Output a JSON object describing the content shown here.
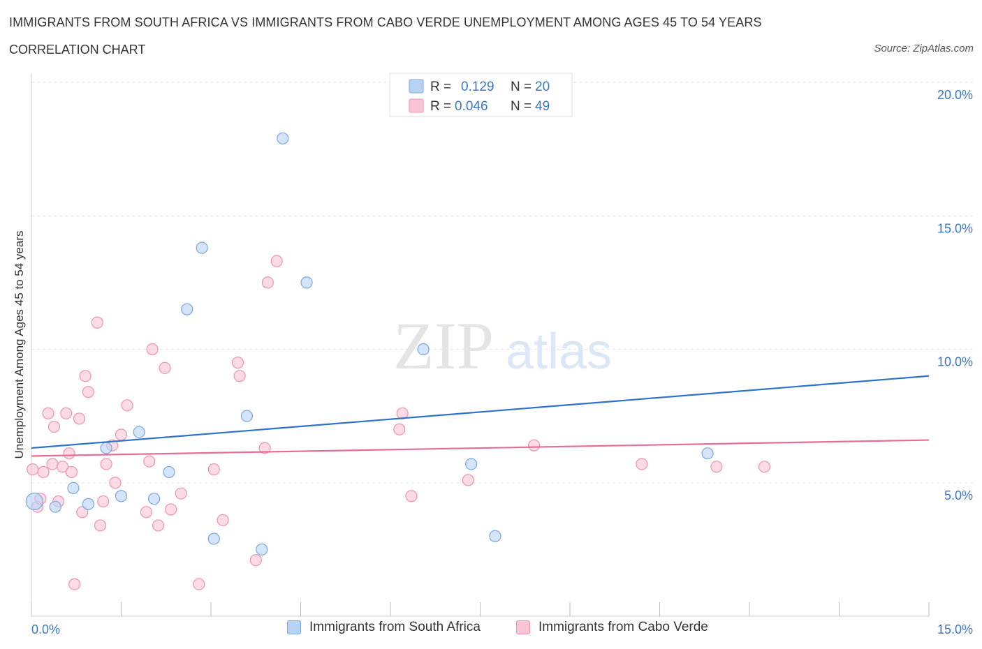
{
  "header": {
    "title": "IMMIGRANTS FROM SOUTH AFRICA VS IMMIGRANTS FROM CABO VERDE UNEMPLOYMENT AMONG AGES 45 TO 54 YEARS",
    "subtitle": "CORRELATION CHART",
    "source": "Source: ZipAtlas.com"
  },
  "watermark": {
    "zip": "ZIP",
    "atlas": "atlas"
  },
  "legend": {
    "r_label": "R =",
    "n_label": "N =",
    "rows": [
      {
        "r": "0.129",
        "n": "20"
      },
      {
        "r": "0.046",
        "n": "49"
      }
    ]
  },
  "colors": {
    "south_africa_fill": "#b9d3f5",
    "south_africa_stroke": "#7aa6e0",
    "south_africa_line": "#2f72c9",
    "cabo_verde_fill": "#f9c5d4",
    "cabo_verde_stroke": "#ee93ae",
    "cabo_verde_line": "#e56e95",
    "axis_label": "#3a78c4"
  },
  "chart_data": {
    "type": "scatter",
    "title": "IMMIGRANTS FROM SOUTH AFRICA VS IMMIGRANTS FROM CABO VERDE UNEMPLOYMENT AMONG AGES 45 TO 54 YEARS",
    "ylabel": "Unemployment Among Ages 45 to 54 years",
    "xlabel": "",
    "xlim": [
      0,
      15
    ],
    "ylim": [
      0,
      20
    ],
    "x_tick_labels": [
      "0.0%",
      "15.0%"
    ],
    "y_ticks": [
      5,
      10,
      15,
      20
    ],
    "y_tick_labels": [
      "5.0%",
      "10.0%",
      "15.0%",
      "20.0%"
    ],
    "grid": true,
    "legend_position": "top-center",
    "series": [
      {
        "name": "Immigrants from South Africa",
        "points": [
          {
            "x": 0.05,
            "y": 4.3,
            "big": true
          },
          {
            "x": 0.4,
            "y": 4.1
          },
          {
            "x": 0.7,
            "y": 4.8
          },
          {
            "x": 0.95,
            "y": 4.2
          },
          {
            "x": 1.25,
            "y": 6.3
          },
          {
            "x": 1.5,
            "y": 4.5
          },
          {
            "x": 1.8,
            "y": 6.9
          },
          {
            "x": 2.05,
            "y": 4.4
          },
          {
            "x": 2.3,
            "y": 5.4
          },
          {
            "x": 2.6,
            "y": 11.5
          },
          {
            "x": 2.85,
            "y": 13.8
          },
          {
            "x": 3.05,
            "y": 2.9
          },
          {
            "x": 3.6,
            "y": 7.5
          },
          {
            "x": 3.85,
            "y": 2.5
          },
          {
            "x": 4.2,
            "y": 17.9
          },
          {
            "x": 4.6,
            "y": 12.5
          },
          {
            "x": 6.55,
            "y": 10.0
          },
          {
            "x": 7.35,
            "y": 5.7
          },
          {
            "x": 7.75,
            "y": 3.0
          },
          {
            "x": 11.3,
            "y": 6.1
          }
        ],
        "trend": {
          "x": [
            0,
            15
          ],
          "y": [
            6.3,
            9.0
          ]
        }
      },
      {
        "name": "Immigrants from Cabo Verde",
        "points": [
          {
            "x": 0.02,
            "y": 5.5
          },
          {
            "x": 0.1,
            "y": 4.1
          },
          {
            "x": 0.15,
            "y": 4.4
          },
          {
            "x": 0.2,
            "y": 5.4
          },
          {
            "x": 0.28,
            "y": 7.6
          },
          {
            "x": 0.35,
            "y": 5.7
          },
          {
            "x": 0.38,
            "y": 7.1
          },
          {
            "x": 0.45,
            "y": 4.3
          },
          {
            "x": 0.52,
            "y": 5.6
          },
          {
            "x": 0.58,
            "y": 7.6
          },
          {
            "x": 0.63,
            "y": 6.1
          },
          {
            "x": 0.67,
            "y": 5.4
          },
          {
            "x": 0.72,
            "y": 1.2
          },
          {
            "x": 0.8,
            "y": 7.4
          },
          {
            "x": 0.85,
            "y": 3.9
          },
          {
            "x": 0.9,
            "y": 9.0
          },
          {
            "x": 0.95,
            "y": 8.4
          },
          {
            "x": 1.1,
            "y": 11.0
          },
          {
            "x": 1.15,
            "y": 3.4
          },
          {
            "x": 1.2,
            "y": 4.3
          },
          {
            "x": 1.25,
            "y": 5.7
          },
          {
            "x": 1.35,
            "y": 6.4
          },
          {
            "x": 1.4,
            "y": 5.0
          },
          {
            "x": 1.5,
            "y": 6.8
          },
          {
            "x": 1.6,
            "y": 7.9
          },
          {
            "x": 1.92,
            "y": 3.9
          },
          {
            "x": 1.97,
            "y": 5.8
          },
          {
            "x": 2.02,
            "y": 10.0
          },
          {
            "x": 2.12,
            "y": 3.4
          },
          {
            "x": 2.23,
            "y": 9.3
          },
          {
            "x": 2.33,
            "y": 4.0
          },
          {
            "x": 2.5,
            "y": 4.6
          },
          {
            "x": 2.8,
            "y": 1.2
          },
          {
            "x": 3.05,
            "y": 5.5
          },
          {
            "x": 3.2,
            "y": 3.6
          },
          {
            "x": 3.45,
            "y": 9.5
          },
          {
            "x": 3.48,
            "y": 9.0
          },
          {
            "x": 3.75,
            "y": 2.1
          },
          {
            "x": 3.9,
            "y": 6.3
          },
          {
            "x": 3.95,
            "y": 12.5
          },
          {
            "x": 4.1,
            "y": 13.3
          },
          {
            "x": 6.15,
            "y": 7.0
          },
          {
            "x": 6.2,
            "y": 7.6
          },
          {
            "x": 6.35,
            "y": 4.5
          },
          {
            "x": 7.3,
            "y": 5.1
          },
          {
            "x": 8.4,
            "y": 6.4
          },
          {
            "x": 10.2,
            "y": 5.7
          },
          {
            "x": 11.45,
            "y": 5.6
          },
          {
            "x": 12.25,
            "y": 5.6
          }
        ],
        "trend": {
          "x": [
            0,
            15
          ],
          "y": [
            6.0,
            6.6
          ]
        }
      }
    ]
  }
}
